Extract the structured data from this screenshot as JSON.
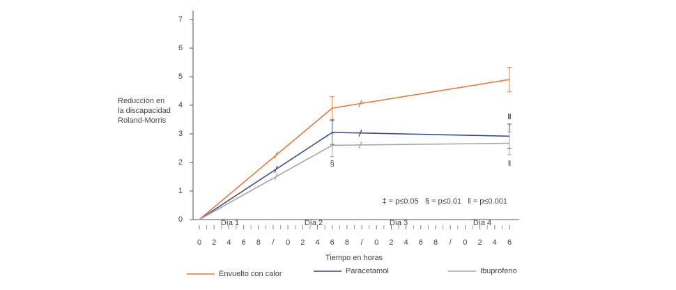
{
  "chart_data": {
    "type": "line",
    "ylabel": [
      "Reducción en",
      "la discapacidad",
      "Roland-Morris"
    ],
    "xlabel": "Tiempo en horas",
    "day_labels": [
      "Día 1",
      "Día 2",
      "Día 3",
      "Día 4"
    ],
    "legend_note": "‡ = p≤0.05   § = p≤0.01   ǁ = p≤0.001",
    "markers": [
      "§",
      "ǁ",
      "ǁ"
    ],
    "x": [
      0,
      9,
      21
    ],
    "xlim": [
      0,
      21
    ],
    "xticks": [
      {
        "value": 0,
        "label": "0"
      },
      {
        "value": 1,
        "label": "2"
      },
      {
        "value": 2,
        "label": "4"
      },
      {
        "value": 3,
        "label": "6"
      },
      {
        "value": 4,
        "label": "8"
      },
      {
        "value": 5,
        "label": "/"
      },
      {
        "value": 6,
        "label": "0"
      },
      {
        "value": 7,
        "label": "2"
      },
      {
        "value": 8,
        "label": "4"
      },
      {
        "value": 9,
        "label": "6"
      },
      {
        "value": 10,
        "label": "8"
      },
      {
        "value": 11,
        "label": "/"
      },
      {
        "value": 12,
        "label": "0"
      },
      {
        "value": 13,
        "label": "2"
      },
      {
        "value": 14,
        "label": "4"
      },
      {
        "value": 15,
        "label": "6"
      },
      {
        "value": 16,
        "label": "8"
      },
      {
        "value": 17,
        "label": "/"
      },
      {
        "value": 18,
        "label": "0"
      },
      {
        "value": 19,
        "label": "2"
      },
      {
        "value": 20,
        "label": "4"
      },
      {
        "value": 21,
        "label": "6"
      }
    ],
    "ylim": [
      0,
      7
    ],
    "yticks": [
      0,
      1,
      2,
      3,
      4,
      5,
      6,
      7
    ],
    "series": [
      {
        "name": "Envuelto con calor",
        "color": "#e07b45",
        "values": [
          0,
          3.9,
          4.9
        ],
        "errors": [
          null,
          0.4,
          0.43
        ]
      },
      {
        "name": "Paracetamol",
        "color": "#3d4f86",
        "values": [
          0,
          3.05,
          2.92
        ],
        "errors": [
          null,
          0.42,
          0.42
        ]
      },
      {
        "name": "Ibuprofeno",
        "color": "#a6a6a6",
        "values": [
          0,
          2.6,
          2.67
        ],
        "errors": [
          null,
          0.4,
          0.4
        ]
      }
    ]
  }
}
